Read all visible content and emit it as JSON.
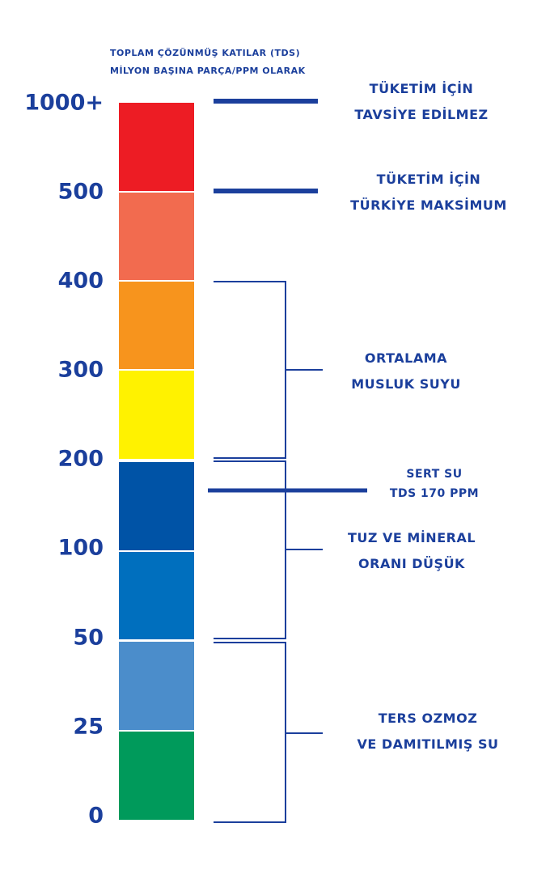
{
  "header": {
    "line1": "TOPLAM ÇÖZÜNMÜŞ KATILAR (TDS)",
    "line2": "MİLYON BAŞINA PARÇA/PPM OLARAK"
  },
  "scale": {
    "ticks": [
      "1000+",
      "500",
      "400",
      "300",
      "200",
      "100",
      "50",
      "25",
      "0"
    ]
  },
  "bands": [
    {
      "from": "500",
      "to": "1000+",
      "color": "#ed1c24"
    },
    {
      "from": "400",
      "to": "500",
      "color": "#f26b4f"
    },
    {
      "from": "300",
      "to": "400",
      "color": "#f7941d"
    },
    {
      "from": "200",
      "to": "300",
      "color": "#fff200"
    },
    {
      "from": "100",
      "to": "200",
      "color": "#0053a6"
    },
    {
      "from": "50",
      "to": "100",
      "color": "#006fbe"
    },
    {
      "from": "25",
      "to": "50",
      "color": "#4b8dcb"
    },
    {
      "from": "0",
      "to": "25",
      "color": "#009a5b"
    }
  ],
  "annotations": {
    "not_recommended": {
      "line1": "TÜKETİM İÇİN",
      "line2": "TAVSİYE EDİLMEZ"
    },
    "turkey_max": {
      "line1": "TÜKETİM İÇİN",
      "line2": "TÜRKİYE MAKSİMUM"
    },
    "tap_water": {
      "line1": "ORTALAMA",
      "line2": "MUSLUK SUYU"
    },
    "hard_water": {
      "line1": "SERT SU",
      "line2": "TDS 170 PPM"
    },
    "low_mineral": {
      "line1": "TUZ VE MİNERAL",
      "line2": "ORANI DÜŞÜK"
    },
    "ro_distilled": {
      "line1": "TERS OZMOZ",
      "line2": "VE DAMITILMIŞ SU"
    }
  },
  "colors": {
    "text": "#1b3f9c"
  }
}
